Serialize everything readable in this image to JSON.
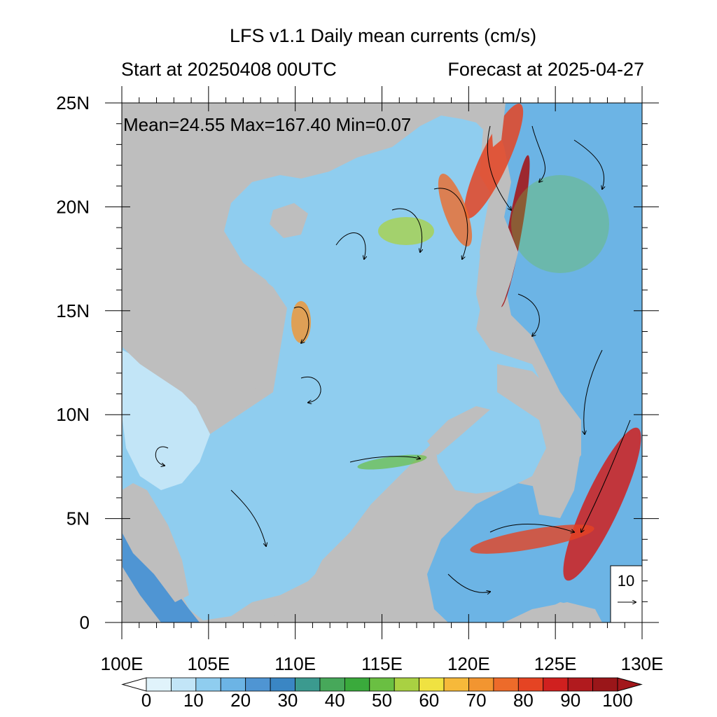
{
  "title": "LFS v1.1 Daily mean currents (cm/s)",
  "subtitle_left": "Start at 20250408 00UTC",
  "subtitle_right": "Forecast at 2025-04-27",
  "stats": "Mean=24.55  Max=167.40  Min=0.07",
  "axes": {
    "lon_ticks": [
      {
        "value": 100,
        "label": "100E"
      },
      {
        "value": 105,
        "label": "105E"
      },
      {
        "value": 110,
        "label": "110E"
      },
      {
        "value": 115,
        "label": "115E"
      },
      {
        "value": 120,
        "label": "120E"
      },
      {
        "value": 125,
        "label": "125E"
      },
      {
        "value": 130,
        "label": "130E"
      }
    ],
    "lat_ticks": [
      {
        "value": 0,
        "label": "0"
      },
      {
        "value": 5,
        "label": "5N"
      },
      {
        "value": 10,
        "label": "10N"
      },
      {
        "value": 15,
        "label": "15N"
      },
      {
        "value": 20,
        "label": "20N"
      },
      {
        "value": 25,
        "label": "25N"
      }
    ],
    "lon_range": [
      100,
      130
    ],
    "lat_range": [
      0,
      25
    ]
  },
  "reference_vector": {
    "label": "10",
    "units": "cm/s"
  },
  "colorbar": {
    "labels": [
      "0",
      "10",
      "20",
      "30",
      "40",
      "50",
      "60",
      "70",
      "80",
      "90",
      "100"
    ],
    "colors": [
      "#e0f3fb",
      "#c2e5f7",
      "#8fcdef",
      "#6cb4e5",
      "#4f95d3",
      "#3a86c4",
      "#3b9a8f",
      "#47a85a",
      "#3aaa3c",
      "#6abf42",
      "#a9d142",
      "#f0e241",
      "#f6b93a",
      "#f29530",
      "#ed6b2a",
      "#e54423",
      "#d0201f",
      "#b11a1e",
      "#9a1619"
    ],
    "under_color": "#ffffff",
    "over_color": "#a3171b"
  },
  "land_color": "#bebebe"
}
